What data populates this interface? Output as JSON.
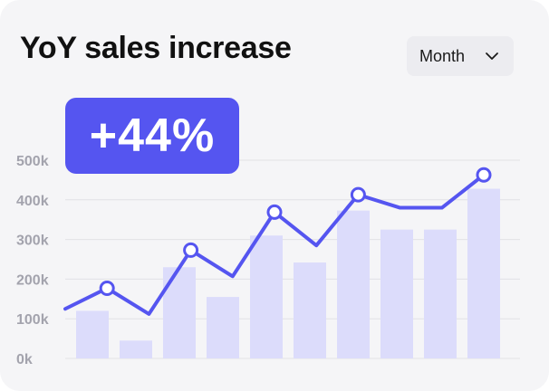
{
  "header": {
    "title": "YoY sales increase",
    "dropdown_label": "Month"
  },
  "badge": {
    "text": "+44%"
  },
  "colors": {
    "accent": "#5555f0",
    "bar": "#dcdcfb",
    "grid": "#e2e2e6",
    "tick": "#a3a3ad",
    "marker_fill": "#ffffff"
  },
  "chart_data": {
    "type": "bar",
    "ylim": [
      0,
      500
    ],
    "yticks": [
      0,
      100,
      200,
      300,
      400,
      500
    ],
    "ytick_labels": [
      "0k",
      "100k",
      "200k",
      "300k",
      "400k",
      "500k"
    ],
    "bars": [
      120,
      45,
      230,
      155,
      310,
      242,
      373,
      325,
      325,
      428
    ],
    "line": {
      "values": [
        125,
        177,
        112,
        273,
        207,
        369,
        285,
        413,
        380,
        380,
        463
      ],
      "markers": [
        1,
        3,
        5,
        7,
        10
      ]
    },
    "grid": true
  }
}
